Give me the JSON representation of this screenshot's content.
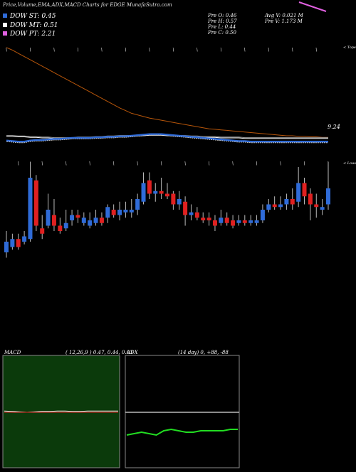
{
  "header": {
    "title": "Price,Volume,EMA,ADX,MACD Charts for EDGE MunafaSutra.com"
  },
  "legend": [
    {
      "label": "DOW ST: 0.45",
      "color": "#2f6bd8"
    },
    {
      "label": "DOW MT: 0.51",
      "color": "#ffffff"
    },
    {
      "label": "DOW PT: 2.21",
      "color": "#e060e0"
    }
  ],
  "stats": {
    "prev_open": "Pre  O: 0.46",
    "prev_high": "Pre  H: 0.57",
    "prev_low": "Pre  L: 0.44",
    "prev_close": "Pre  C: 0.50",
    "avg_vol": "Avg V: 0.021 M",
    "prev_vol": "Pre  V: 1.173 M"
  },
  "labels": {
    "price_tag": "9.24",
    "top_right": "< Tope",
    "mid_right": "< Lowest"
  },
  "macd_panel": {
    "label": "MACD",
    "params": "( 12,26,9 ) 0.47, 0.44, 0.03"
  },
  "adx_panel": {
    "label": "ADX",
    "params": "(14  day) 0, +88, -88"
  },
  "colors": {
    "up": "#2f6bd8",
    "down": "#e02020",
    "ema_long": "#b8560a",
    "ema": "#ffffff",
    "blue_line": "#2f6bd8",
    "macd_bg": "#0b3a0b",
    "adx_line": "#22dd22"
  },
  "chart_data": [
    {
      "type": "candlestick",
      "title": "Price,Volume,EMA,ADX,MACD Charts for EDGE MunafaSutra.com",
      "candles": [
        {
          "o": 0.42,
          "c": 0.46,
          "h": 0.5,
          "l": 0.4
        },
        {
          "o": 0.44,
          "c": 0.47,
          "h": 0.49,
          "l": 0.43
        },
        {
          "o": 0.47,
          "c": 0.44,
          "h": 0.49,
          "l": 0.43
        },
        {
          "o": 0.46,
          "c": 0.48,
          "h": 0.5,
          "l": 0.45
        },
        {
          "o": 0.47,
          "c": 0.7,
          "h": 0.76,
          "l": 0.46
        },
        {
          "o": 0.69,
          "c": 0.52,
          "h": 0.71,
          "l": 0.5
        },
        {
          "o": 0.51,
          "c": 0.49,
          "h": 0.56,
          "l": 0.47
        },
        {
          "o": 0.52,
          "c": 0.58,
          "h": 0.64,
          "l": 0.51
        },
        {
          "o": 0.56,
          "c": 0.52,
          "h": 0.62,
          "l": 0.5
        },
        {
          "o": 0.52,
          "c": 0.5,
          "h": 0.55,
          "l": 0.49
        },
        {
          "o": 0.51,
          "c": 0.53,
          "h": 0.58,
          "l": 0.5
        },
        {
          "o": 0.54,
          "c": 0.56,
          "h": 0.58,
          "l": 0.52
        },
        {
          "o": 0.56,
          "c": 0.55,
          "h": 0.58,
          "l": 0.53
        },
        {
          "o": 0.53,
          "c": 0.55,
          "h": 0.57,
          "l": 0.52
        },
        {
          "o": 0.52,
          "c": 0.54,
          "h": 0.57,
          "l": 0.51
        },
        {
          "o": 0.53,
          "c": 0.55,
          "h": 0.58,
          "l": 0.52
        },
        {
          "o": 0.55,
          "c": 0.53,
          "h": 0.57,
          "l": 0.52
        },
        {
          "o": 0.55,
          "c": 0.59,
          "h": 0.6,
          "l": 0.53
        },
        {
          "o": 0.58,
          "c": 0.56,
          "h": 0.6,
          "l": 0.55
        },
        {
          "o": 0.56,
          "c": 0.58,
          "h": 0.61,
          "l": 0.54
        },
        {
          "o": 0.57,
          "c": 0.58,
          "h": 0.61,
          "l": 0.55
        },
        {
          "o": 0.57,
          "c": 0.58,
          "h": 0.62,
          "l": 0.55
        },
        {
          "o": 0.58,
          "c": 0.62,
          "h": 0.64,
          "l": 0.56
        },
        {
          "o": 0.61,
          "c": 0.68,
          "h": 0.72,
          "l": 0.6
        },
        {
          "o": 0.69,
          "c": 0.64,
          "h": 0.72,
          "l": 0.62
        },
        {
          "o": 0.64,
          "c": 0.65,
          "h": 0.68,
          "l": 0.61
        },
        {
          "o": 0.65,
          "c": 0.64,
          "h": 0.7,
          "l": 0.62
        },
        {
          "o": 0.64,
          "c": 0.63,
          "h": 0.68,
          "l": 0.62
        },
        {
          "o": 0.64,
          "c": 0.6,
          "h": 0.65,
          "l": 0.58
        },
        {
          "o": 0.6,
          "c": 0.62,
          "h": 0.65,
          "l": 0.58
        },
        {
          "o": 0.61,
          "c": 0.56,
          "h": 0.63,
          "l": 0.52
        },
        {
          "o": 0.56,
          "c": 0.57,
          "h": 0.6,
          "l": 0.54
        },
        {
          "o": 0.57,
          "c": 0.55,
          "h": 0.59,
          "l": 0.54
        },
        {
          "o": 0.55,
          "c": 0.54,
          "h": 0.57,
          "l": 0.53
        },
        {
          "o": 0.55,
          "c": 0.54,
          "h": 0.57,
          "l": 0.52
        },
        {
          "o": 0.54,
          "c": 0.52,
          "h": 0.56,
          "l": 0.5
        },
        {
          "o": 0.53,
          "c": 0.55,
          "h": 0.58,
          "l": 0.52
        },
        {
          "o": 0.55,
          "c": 0.53,
          "h": 0.57,
          "l": 0.52
        },
        {
          "o": 0.54,
          "c": 0.52,
          "h": 0.56,
          "l": 0.51
        },
        {
          "o": 0.53,
          "c": 0.54,
          "h": 0.56,
          "l": 0.52
        },
        {
          "o": 0.54,
          "c": 0.53,
          "h": 0.56,
          "l": 0.52
        },
        {
          "o": 0.53,
          "c": 0.54,
          "h": 0.56,
          "l": 0.52
        },
        {
          "o": 0.53,
          "c": 0.54,
          "h": 0.56,
          "l": 0.52
        },
        {
          "o": 0.54,
          "c": 0.58,
          "h": 0.6,
          "l": 0.53
        },
        {
          "o": 0.58,
          "c": 0.6,
          "h": 0.62,
          "l": 0.57
        },
        {
          "o": 0.6,
          "c": 0.59,
          "h": 0.63,
          "l": 0.58
        },
        {
          "o": 0.59,
          "c": 0.6,
          "h": 0.63,
          "l": 0.58
        },
        {
          "o": 0.6,
          "c": 0.62,
          "h": 0.64,
          "l": 0.58
        },
        {
          "o": 0.62,
          "c": 0.6,
          "h": 0.66,
          "l": 0.58
        },
        {
          "o": 0.61,
          "c": 0.68,
          "h": 0.74,
          "l": 0.59
        },
        {
          "o": 0.68,
          "c": 0.63,
          "h": 0.7,
          "l": 0.6
        },
        {
          "o": 0.64,
          "c": 0.6,
          "h": 0.66,
          "l": 0.54
        },
        {
          "o": 0.6,
          "c": 0.59,
          "h": 0.64,
          "l": 0.55
        },
        {
          "o": 0.58,
          "c": 0.59,
          "h": 0.62,
          "l": 0.56
        },
        {
          "o": 0.6,
          "c": 0.66,
          "h": 0.76,
          "l": 0.58
        }
      ],
      "ema_long": [
        2.21,
        2.16,
        2.1,
        2.04,
        1.98,
        1.92,
        1.86,
        1.8,
        1.74,
        1.68,
        1.62,
        1.56,
        1.5,
        1.44,
        1.38,
        1.32,
        1.26,
        1.2,
        1.14,
        1.08,
        1.03,
        0.98,
        0.95,
        0.92,
        0.89,
        0.87,
        0.85,
        0.83,
        0.81,
        0.79,
        0.77,
        0.75,
        0.73,
        0.71,
        0.69,
        0.68,
        0.67,
        0.66,
        0.65,
        0.64,
        0.63,
        0.62,
        0.61,
        0.6,
        0.59,
        0.58,
        0.57,
        0.56,
        0.56,
        0.55,
        0.55,
        0.54,
        0.54,
        0.53,
        0.53
      ],
      "ema_mt": [
        0.55,
        0.55,
        0.54,
        0.54,
        0.53,
        0.53,
        0.52,
        0.52,
        0.51,
        0.51,
        0.51,
        0.51,
        0.52,
        0.52,
        0.52,
        0.53,
        0.53,
        0.54,
        0.54,
        0.55,
        0.55,
        0.55,
        0.56,
        0.56,
        0.57,
        0.57,
        0.57,
        0.56,
        0.56,
        0.55,
        0.55,
        0.54,
        0.54,
        0.53,
        0.53,
        0.53,
        0.52,
        0.52,
        0.52,
        0.52,
        0.51,
        0.51,
        0.51,
        0.51,
        0.51,
        0.51,
        0.51,
        0.51,
        0.51,
        0.51,
        0.51,
        0.51,
        0.51,
        0.51,
        0.51
      ],
      "ema_st": [
        0.47,
        0.46,
        0.45,
        0.45,
        0.47,
        0.48,
        0.48,
        0.49,
        0.5,
        0.5,
        0.51,
        0.52,
        0.52,
        0.52,
        0.52,
        0.53,
        0.53,
        0.54,
        0.54,
        0.55,
        0.55,
        0.56,
        0.57,
        0.58,
        0.59,
        0.59,
        0.59,
        0.58,
        0.57,
        0.56,
        0.55,
        0.54,
        0.53,
        0.52,
        0.51,
        0.5,
        0.49,
        0.48,
        0.47,
        0.46,
        0.46,
        0.45,
        0.45,
        0.45,
        0.45,
        0.45,
        0.45,
        0.45,
        0.45,
        0.45,
        0.45,
        0.45,
        0.45,
        0.45,
        0.45
      ]
    },
    {
      "type": "line",
      "name": "MACD",
      "series": [
        {
          "values": [
            0.47,
            0.46,
            0.45,
            0.44,
            0.45,
            0.46,
            0.46,
            0.47,
            0.47,
            0.46,
            0.46,
            0.47,
            0.47,
            0.47,
            0.47,
            0.47
          ]
        },
        {
          "values": [
            0.44,
            0.44,
            0.44,
            0.44,
            0.44,
            0.44,
            0.44,
            0.44,
            0.44,
            0.44,
            0.44,
            0.44,
            0.44,
            0.44,
            0.44,
            0.44
          ]
        }
      ]
    },
    {
      "type": "line",
      "name": "ADX",
      "series": [
        {
          "values": [
            0,
            0,
            0,
            0,
            0,
            0,
            0,
            0,
            0,
            0,
            0,
            0,
            0,
            0,
            0,
            0
          ]
        },
        {
          "values": [
            20,
            22,
            24,
            22,
            20,
            26,
            28,
            26,
            24,
            24,
            26,
            26,
            26,
            26,
            28,
            28
          ]
        }
      ]
    }
  ]
}
